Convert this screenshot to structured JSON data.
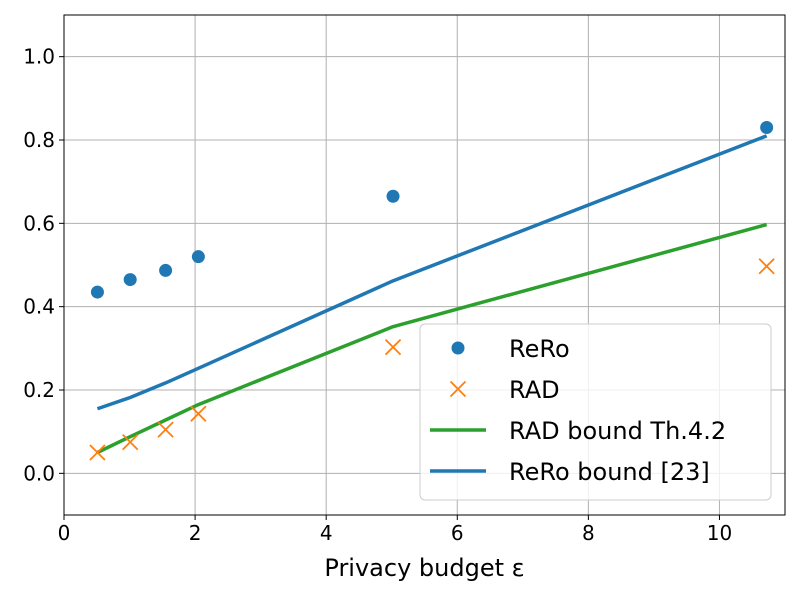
{
  "chart_data": {
    "type": "scatter",
    "xlabel": "Privacy budget ε",
    "ylabel": "",
    "xlim": [
      0,
      11
    ],
    "ylim": [
      -0.1,
      1.1
    ],
    "xticks": [
      0,
      2,
      4,
      6,
      8,
      10
    ],
    "yticks": [
      0.0,
      0.2,
      0.4,
      0.6,
      0.8,
      1.0
    ],
    "xtick_labels": [
      "0",
      "2",
      "4",
      "6",
      "8",
      "10"
    ],
    "ytick_labels": [
      "0.0",
      "0.2",
      "0.4",
      "0.6",
      "0.8",
      "1.0"
    ],
    "grid": true,
    "legend_position": "lower-right",
    "series": [
      {
        "name": "ReRo",
        "kind": "scatter",
        "marker": "circle",
        "color": "#1f77b4",
        "x": [
          0.51,
          1.01,
          1.55,
          2.05,
          5.02,
          10.72
        ],
        "y": [
          0.435,
          0.465,
          0.487,
          0.52,
          0.665,
          0.83
        ]
      },
      {
        "name": "RAD",
        "kind": "scatter",
        "marker": "x",
        "color": "#ff7f0e",
        "x": [
          0.51,
          1.01,
          1.55,
          2.05,
          5.02,
          10.72
        ],
        "y": [
          0.05,
          0.075,
          0.105,
          0.143,
          0.303,
          0.497
        ]
      },
      {
        "name": "RAD bound Th.4.2",
        "kind": "line",
        "color": "#2ca02c",
        "x": [
          0.51,
          1.01,
          1.55,
          2.05,
          5.02,
          10.72
        ],
        "y": [
          0.05,
          0.088,
          0.128,
          0.165,
          0.352,
          0.597
        ]
      },
      {
        "name": "ReRo bound [23]",
        "kind": "line",
        "color": "#1f77b4",
        "x": [
          0.51,
          1.01,
          1.55,
          2.05,
          5.02,
          10.72
        ],
        "y": [
          0.155,
          0.182,
          0.217,
          0.252,
          0.462,
          0.81
        ]
      }
    ]
  }
}
